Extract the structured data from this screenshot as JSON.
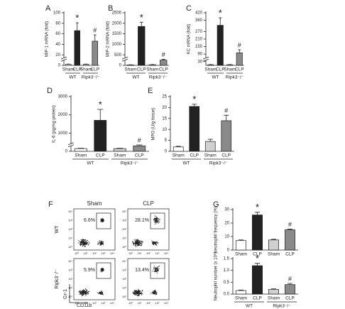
{
  "chart_data": [
    {
      "type": "bar",
      "panel": "A",
      "ylabel": "MIP-1 mRNA (fold)",
      "categories": [
        "Sham",
        "CLP",
        "Sham",
        "CLP"
      ],
      "groups": [
        "WT",
        "Ripk3⁻/⁻"
      ],
      "values": [
        2,
        66,
        2,
        46
      ],
      "errors": [
        0.5,
        15,
        0.5,
        12
      ],
      "colors": [
        "#ffffff",
        "#222222",
        "#d0d0d0",
        "#8a8a8a"
      ],
      "significance": [
        null,
        "*",
        null,
        "#"
      ],
      "ylim": [
        0,
        100
      ],
      "yticks": [
        0,
        20,
        40,
        60,
        80,
        100
      ],
      "broken_axis": true
    },
    {
      "type": "bar",
      "panel": "B",
      "ylabel": "MIP-2 mRNA (fold)",
      "categories": [
        "Sham",
        "CLP",
        "Sham",
        "CLP"
      ],
      "groups": [
        "WT",
        "Ripk3⁻/⁻"
      ],
      "values": [
        20,
        1850,
        30,
        250
      ],
      "errors": [
        10,
        200,
        10,
        40
      ],
      "colors": [
        "#ffffff",
        "#222222",
        "#d0d0d0",
        "#8a8a8a"
      ],
      "significance": [
        null,
        "*",
        null,
        "#"
      ],
      "ylim": [
        0,
        2500
      ],
      "yticks": [
        0,
        500,
        1000,
        1500,
        2000,
        2500
      ],
      "broken_axis": true
    },
    {
      "type": "bar",
      "panel": "C",
      "ylabel": "KC mRNA (fold)",
      "categories": [
        "Sham",
        "CLP",
        "Sham",
        "CLP"
      ],
      "groups": [
        "WT",
        "Ripk3⁻/⁻"
      ],
      "values": [
        5,
        320,
        5,
        100
      ],
      "errors": [
        2,
        60,
        2,
        25
      ],
      "colors": [
        "#ffffff",
        "#222222",
        "#d0d0d0",
        "#8a8a8a"
      ],
      "significance": [
        null,
        "*",
        null,
        "#"
      ],
      "ylim": [
        0,
        420
      ],
      "yticks": [
        30,
        90,
        150,
        210,
        270,
        360,
        420
      ],
      "broken_axis": true
    },
    {
      "type": "bar",
      "panel": "D",
      "ylabel": "IL-6 (pg/mg protein)",
      "categories": [
        "Sham",
        "CLP",
        "Sham",
        "CLP"
      ],
      "groups": [
        "WT",
        "Ripk3⁻/⁻"
      ],
      "values": [
        150,
        1700,
        150,
        300
      ],
      "errors": [
        20,
        600,
        20,
        50
      ],
      "colors": [
        "#ffffff",
        "#222222",
        "#d0d0d0",
        "#8a8a8a"
      ],
      "significance": [
        null,
        "*",
        null,
        "#"
      ],
      "ylim": [
        0,
        3000
      ],
      "yticks": [
        0,
        1000,
        2000,
        3000
      ],
      "broken_axis": true
    },
    {
      "type": "bar",
      "panel": "E",
      "ylabel": "MPO (U/g tissue)",
      "categories": [
        "Sham",
        "CLP",
        "Sham",
        "CLP"
      ],
      "groups": [
        "WT",
        "Ripk3⁻/⁻"
      ],
      "values": [
        2,
        20.5,
        4.5,
        14
      ],
      "errors": [
        0.3,
        1,
        1,
        2.5
      ],
      "colors": [
        "#ffffff",
        "#222222",
        "#d0d0d0",
        "#8a8a8a"
      ],
      "significance": [
        null,
        "*",
        null,
        "#"
      ],
      "ylim": [
        0,
        25
      ],
      "yticks": [
        0,
        5,
        10,
        15,
        20,
        25
      ],
      "broken_axis": false
    },
    {
      "type": "bar",
      "panel": "G",
      "ylabel": "Neutrophil frequency (%)",
      "categories": [
        "Sham",
        "CLP",
        "Sham",
        "CLP"
      ],
      "values": [
        7,
        26,
        7.5,
        15
      ],
      "errors": [
        0.5,
        2,
        0.5,
        0.5
      ],
      "colors": [
        "#ffffff",
        "#222222",
        "#d0d0d0",
        "#8a8a8a"
      ],
      "significance": [
        null,
        "*",
        null,
        "#"
      ],
      "ylim": [
        0,
        30
      ],
      "yticks": [
        0,
        10,
        20,
        30
      ],
      "broken_axis": false
    },
    {
      "type": "bar",
      "ylabel": "Neutrophil number (x 10⁶)",
      "categories": [
        "Sham",
        "CLP",
        "Sham",
        "CLP"
      ],
      "groups": [
        "WT",
        "Ripk3⁻/⁻"
      ],
      "values": [
        0.15,
        1.2,
        0.2,
        0.4
      ],
      "errors": [
        0.02,
        0.1,
        0.02,
        0.05
      ],
      "colors": [
        "#ffffff",
        "#222222",
        "#d0d0d0",
        "#8a8a8a"
      ],
      "significance": [
        null,
        "*",
        null,
        "#"
      ],
      "ylim": [
        0,
        1.5
      ],
      "yticks": [
        {
          "value": 0,
          "label": "0.0"
        },
        0.5,
        {
          "value": 1,
          "label": "1.0"
        },
        1.5
      ],
      "broken_axis": false
    }
  ],
  "flow_panel": {
    "panel": "F",
    "columns": [
      "Sham",
      "CLP"
    ],
    "rows": [
      "WT",
      "Ripk3⁻/⁻"
    ],
    "gates": [
      "6.6%",
      "28.1%",
      "5.9%",
      "13.4%"
    ],
    "xlabel": "CD11b",
    "ylabel": "Gr-1",
    "ticks": [
      "10⁰",
      "10¹",
      "10²",
      "10³",
      "10⁴"
    ]
  }
}
